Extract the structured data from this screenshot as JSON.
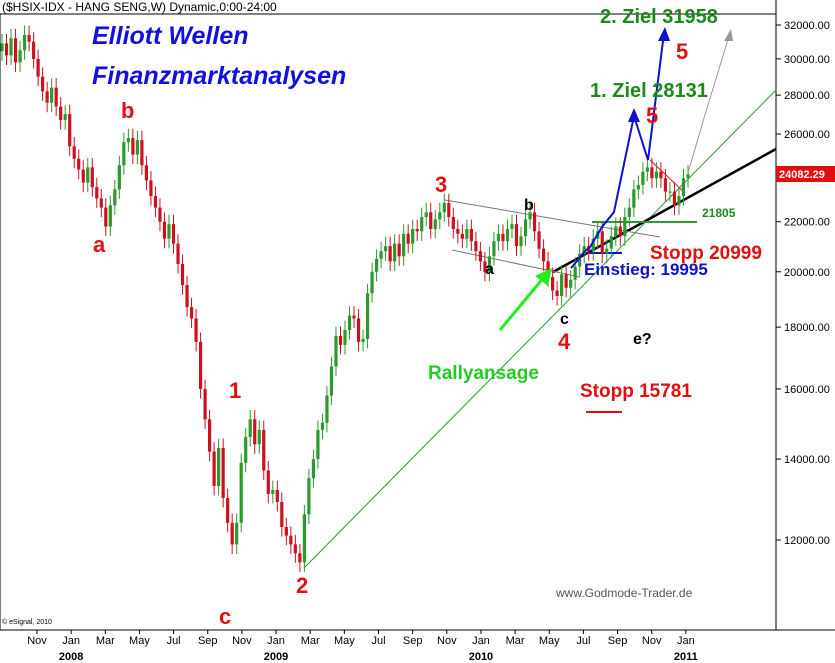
{
  "header": {
    "title": "($HSIX-IDX - HANG SENG,W) Dynamic,0:00-24:00"
  },
  "headlines": {
    "line1": "Elliott Wellen",
    "line2": "Finanzmarktanalysen"
  },
  "copyright": "© eSignal, 2010",
  "watermark": "www.Godmode-Trader.de",
  "last_price": "24082.29",
  "colors": {
    "up": "#2a9a2a",
    "down": "#cc1020",
    "green_line": "#2a9a2a",
    "red_text": "#e01010",
    "blue_text": "#1010d0",
    "price_tag": "#e01010"
  },
  "wave_labels": {
    "a_left": "a",
    "b_left": "b",
    "c_low": "c",
    "w1": "1",
    "w2": "2",
    "w3": "3",
    "a_mid": "a",
    "b_mid": "b",
    "c_mid": "c",
    "w4": "4",
    "e_q": "e?",
    "w5_a": "5",
    "w5_b": "5"
  },
  "annotations": {
    "ziel1": "1. Ziel 28131",
    "ziel2": "2. Ziel 31958",
    "level_21805": "21805",
    "stopp_20999": "Stopp 20999",
    "einstieg": "Einstieg: 19995",
    "rallyansage": "Rallyansage",
    "stopp_15781": "Stopp 15781"
  },
  "chart_data": {
    "type": "candlestick",
    "title": "($HSIX-IDX - HANG SENG,W) Dynamic,0:00-24:00",
    "y_scale": "log",
    "y_ticks": [
      "12000.00",
      "14000.00",
      "16000.00",
      "18000.00",
      "20000.00",
      "22000.00",
      "24000.00",
      "26000.00",
      "28000.00",
      "30000.00",
      "32000.00"
    ],
    "x_ticks": [
      "Nov",
      "Jan",
      "Mar",
      "May",
      "Jul",
      "Sep",
      "Nov",
      "Jan",
      "Mar",
      "May",
      "Jul",
      "Sep",
      "Nov",
      "Jan",
      "Mar",
      "May",
      "Jul",
      "Sep",
      "Nov",
      "Jan"
    ],
    "year_labels": [
      "2008",
      "2009",
      "2010",
      "2011"
    ],
    "last_value": 24082.29,
    "levels": {
      "target1": 28131,
      "target2": 31958,
      "support": 21805,
      "stop1": 20999,
      "entry": 19995,
      "stop2": 15781
    },
    "closes": [
      30900,
      30200,
      31200,
      29800,
      30500,
      31400,
      31000,
      30000,
      29000,
      28200,
      27600,
      28400,
      27400,
      26700,
      27000,
      25400,
      24800,
      24300,
      23700,
      24400,
      23500,
      23000,
      22600,
      21800,
      22700,
      23400,
      24500,
      25600,
      25800,
      25000,
      25700,
      24500,
      23800,
      23100,
      22600,
      22000,
      21300,
      21900,
      21100,
      20300,
      19500,
      18700,
      18300,
      17500,
      16000,
      15100,
      14200,
      13300,
      14300,
      13000,
      12400,
      11900,
      12400,
      13900,
      14600,
      15100,
      14400,
      14800,
      13700,
      13100,
      13200,
      12900,
      12300,
      12100,
      11900,
      11700,
      11500,
      12600,
      13500,
      14000,
      14800,
      15000,
      15800,
      16700,
      17700,
      17400,
      17900,
      18400,
      18300,
      17500,
      17600,
      19200,
      20000,
      20500,
      20800,
      21000,
      20400,
      21100,
      20600,
      21500,
      21100,
      21700,
      21600,
      22200,
      22400,
      21700,
      22100,
      22400,
      22800,
      22200,
      21700,
      21500,
      21300,
      21700,
      21200,
      20800,
      20400,
      20000,
      20600,
      21200,
      21500,
      21200,
      21700,
      21900,
      21000,
      21400,
      22100,
      22400,
      21600,
      20900,
      20400,
      19800,
      19300,
      19100,
      19900,
      19400,
      19700,
      20200,
      20700,
      21000,
      20800,
      21300,
      21600,
      20700,
      20900,
      21400,
      21800,
      21400,
      22200,
      22600,
      23400,
      23600,
      24200,
      24400,
      23900,
      24200,
      23900,
      23300,
      23300,
      22700,
      23100,
      23900,
      24082.29
    ]
  }
}
